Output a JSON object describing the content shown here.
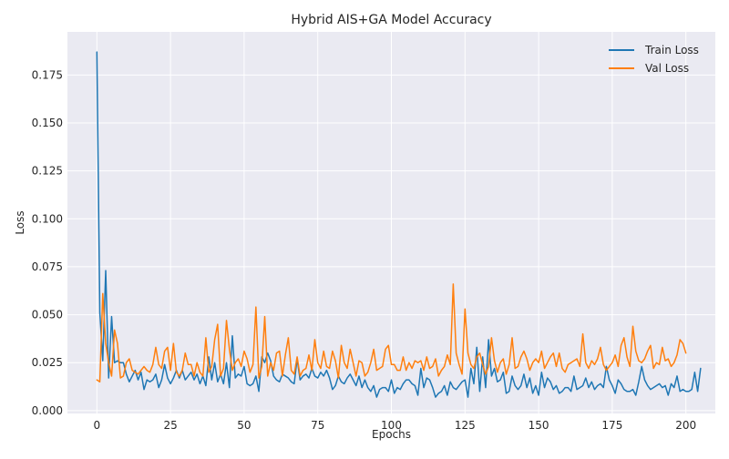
{
  "chart_data": {
    "type": "line",
    "title": "Hybrid AIS+GA Model Accuracy",
    "xlabel": "Epochs",
    "ylabel": "Loss",
    "xlim": [
      -10,
      210
    ],
    "ylim": [
      -0.0015,
      0.1975
    ],
    "xticks": [
      0,
      25,
      50,
      75,
      100,
      125,
      150,
      175,
      200
    ],
    "yticks": [
      0.0,
      0.025,
      0.05,
      0.075,
      0.1,
      0.125,
      0.15,
      0.175
    ],
    "ytick_labels": [
      "0.000",
      "0.025",
      "0.050",
      "0.075",
      "0.100",
      "0.125",
      "0.150",
      "0.175"
    ],
    "grid": true,
    "legend_position": "top-right",
    "series": [
      {
        "name": "Train Loss",
        "color": "#1f77b4",
        "values": [
          0.187,
          0.051,
          0.026,
          0.073,
          0.017,
          0.049,
          0.025,
          0.026,
          0.025,
          0.025,
          0.019,
          0.015,
          0.018,
          0.021,
          0.016,
          0.02,
          0.011,
          0.016,
          0.015,
          0.016,
          0.019,
          0.012,
          0.016,
          0.024,
          0.017,
          0.014,
          0.017,
          0.021,
          0.017,
          0.021,
          0.016,
          0.018,
          0.02,
          0.016,
          0.019,
          0.014,
          0.018,
          0.013,
          0.028,
          0.016,
          0.025,
          0.015,
          0.019,
          0.014,
          0.025,
          0.012,
          0.039,
          0.017,
          0.019,
          0.018,
          0.023,
          0.014,
          0.013,
          0.014,
          0.018,
          0.01,
          0.028,
          0.025,
          0.03,
          0.026,
          0.018,
          0.016,
          0.015,
          0.019,
          0.018,
          0.017,
          0.015,
          0.014,
          0.027,
          0.016,
          0.018,
          0.019,
          0.017,
          0.022,
          0.018,
          0.017,
          0.02,
          0.018,
          0.021,
          0.017,
          0.011,
          0.013,
          0.018,
          0.015,
          0.014,
          0.017,
          0.019,
          0.016,
          0.013,
          0.018,
          0.012,
          0.016,
          0.012,
          0.01,
          0.013,
          0.007,
          0.011,
          0.012,
          0.012,
          0.01,
          0.016,
          0.009,
          0.012,
          0.011,
          0.014,
          0.016,
          0.016,
          0.014,
          0.013,
          0.008,
          0.022,
          0.012,
          0.017,
          0.016,
          0.012,
          0.007,
          0.009,
          0.01,
          0.013,
          0.008,
          0.015,
          0.012,
          0.011,
          0.013,
          0.015,
          0.016,
          0.007,
          0.022,
          0.014,
          0.033,
          0.01,
          0.028,
          0.012,
          0.037,
          0.018,
          0.022,
          0.015,
          0.016,
          0.02,
          0.009,
          0.01,
          0.018,
          0.013,
          0.011,
          0.013,
          0.019,
          0.012,
          0.017,
          0.009,
          0.013,
          0.008,
          0.02,
          0.012,
          0.017,
          0.015,
          0.011,
          0.013,
          0.009,
          0.01,
          0.012,
          0.012,
          0.01,
          0.018,
          0.011,
          0.012,
          0.013,
          0.017,
          0.012,
          0.015,
          0.011,
          0.013,
          0.014,
          0.012,
          0.023,
          0.016,
          0.013,
          0.009,
          0.016,
          0.014,
          0.011,
          0.01,
          0.01,
          0.011,
          0.008,
          0.015,
          0.023,
          0.016,
          0.013,
          0.011,
          0.012,
          0.013,
          0.014,
          0.012,
          0.013,
          0.008,
          0.014,
          0.012,
          0.018,
          0.01,
          0.011,
          0.01,
          0.01,
          0.011,
          0.02,
          0.01,
          0.022
        ]
      },
      {
        "name": "Val Loss",
        "color": "#ff7f0e",
        "values": [
          0.016,
          0.015,
          0.061,
          0.035,
          0.025,
          0.018,
          0.042,
          0.035,
          0.017,
          0.018,
          0.025,
          0.027,
          0.021,
          0.02,
          0.019,
          0.021,
          0.023,
          0.021,
          0.02,
          0.024,
          0.033,
          0.024,
          0.022,
          0.031,
          0.033,
          0.021,
          0.035,
          0.02,
          0.018,
          0.021,
          0.03,
          0.024,
          0.024,
          0.018,
          0.025,
          0.02,
          0.018,
          0.038,
          0.02,
          0.023,
          0.037,
          0.045,
          0.018,
          0.022,
          0.047,
          0.032,
          0.021,
          0.025,
          0.027,
          0.023,
          0.031,
          0.027,
          0.02,
          0.024,
          0.054,
          0.017,
          0.023,
          0.049,
          0.018,
          0.025,
          0.021,
          0.03,
          0.031,
          0.018,
          0.029,
          0.038,
          0.021,
          0.019,
          0.028,
          0.018,
          0.021,
          0.022,
          0.029,
          0.021,
          0.037,
          0.025,
          0.022,
          0.031,
          0.023,
          0.022,
          0.031,
          0.026,
          0.017,
          0.034,
          0.025,
          0.022,
          0.032,
          0.025,
          0.018,
          0.026,
          0.025,
          0.018,
          0.02,
          0.025,
          0.032,
          0.021,
          0.022,
          0.023,
          0.032,
          0.034,
          0.024,
          0.024,
          0.021,
          0.021,
          0.028,
          0.021,
          0.025,
          0.022,
          0.026,
          0.025,
          0.026,
          0.021,
          0.028,
          0.022,
          0.023,
          0.027,
          0.018,
          0.021,
          0.023,
          0.029,
          0.024,
          0.066,
          0.03,
          0.024,
          0.019,
          0.053,
          0.03,
          0.024,
          0.022,
          0.028,
          0.03,
          0.024,
          0.019,
          0.023,
          0.038,
          0.026,
          0.02,
          0.025,
          0.027,
          0.019,
          0.024,
          0.038,
          0.022,
          0.023,
          0.028,
          0.031,
          0.027,
          0.021,
          0.025,
          0.027,
          0.025,
          0.031,
          0.022,
          0.025,
          0.028,
          0.03,
          0.023,
          0.03,
          0.022,
          0.02,
          0.024,
          0.025,
          0.026,
          0.027,
          0.023,
          0.04,
          0.025,
          0.022,
          0.026,
          0.024,
          0.027,
          0.033,
          0.024,
          0.021,
          0.023,
          0.025,
          0.029,
          0.023,
          0.034,
          0.038,
          0.028,
          0.023,
          0.044,
          0.031,
          0.026,
          0.025,
          0.027,
          0.031,
          0.034,
          0.022,
          0.025,
          0.024,
          0.033,
          0.026,
          0.027,
          0.023,
          0.025,
          0.029,
          0.037,
          0.035,
          0.03
        ]
      }
    ]
  }
}
